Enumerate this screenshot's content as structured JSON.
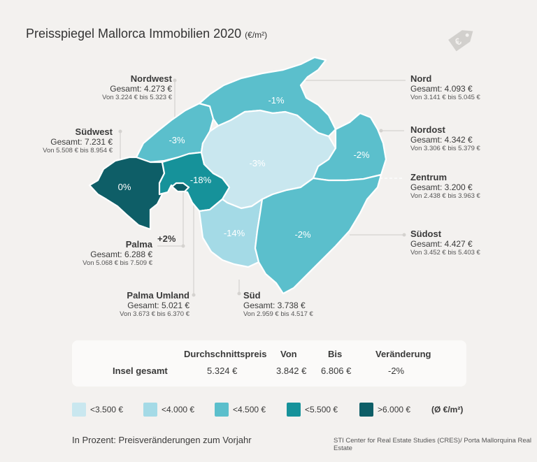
{
  "title": "Preisspiegel Mallorca Immobilien 2020",
  "title_unit": "(€/m²)",
  "icon": "price-tag-euro-icon",
  "regions": [
    {
      "key": "nordwest",
      "name": "Nordwest",
      "gesamt": "Gesamt: 4.273 €",
      "range": "Von 3.224 € bis 5.323 €",
      "change": "-3%",
      "color": "#5bbfcc"
    },
    {
      "key": "nord",
      "name": "Nord",
      "gesamt": "Gesamt: 4.093 €",
      "range": "Von 3.141 € bis 5.045 €",
      "change": "-1%",
      "color": "#5bbfcc"
    },
    {
      "key": "suedwest",
      "name": "Südwest",
      "gesamt": "Gesamt: 7.231 €",
      "range": "Von 5.508 € bis 8.954 €",
      "change": "0%",
      "color": "#0e5e67"
    },
    {
      "key": "nordost",
      "name": "Nordost",
      "gesamt": "Gesamt: 4.342 €",
      "range": "Von 3.306 € bis 5.379 €",
      "change": "-2%",
      "color": "#5bbfcc"
    },
    {
      "key": "zentrum",
      "name": "Zentrum",
      "gesamt": "Gesamt: 3.200 €",
      "range": "Von 2.438 € bis 3.963 €",
      "change": "-3%",
      "color": "#c9e7ef"
    },
    {
      "key": "palma",
      "name": "Palma",
      "gesamt": "Gesamt: 6.288 €",
      "range": "Von 5.068 € bis 7.509 €",
      "change": "+2%",
      "color": "#0e5e67"
    },
    {
      "key": "palma_umland",
      "name": "Palma Umland",
      "gesamt": "Gesamt: 5.021 €",
      "range": "Von 3.673 € bis 6.370 €",
      "change": "-18%",
      "color": "#16929a"
    },
    {
      "key": "sued",
      "name": "Süd",
      "gesamt": "Gesamt: 3.738 €",
      "range": "Von 2.959 € bis 4.517 €",
      "change": "-14%",
      "color": "#a4dae6"
    },
    {
      "key": "suedost",
      "name": "Südost",
      "gesamt": "Gesamt: 4.427 €",
      "range": "Von 3.452 € bis 5.403 €",
      "change": "-2%",
      "color": "#5bbfcc"
    }
  ],
  "summary": {
    "headers": [
      "Durchschnittspreis",
      "Von",
      "Bis",
      "Veränderung"
    ],
    "row_label": "Insel gesamt",
    "values": [
      "5.324 €",
      "3.842 €",
      "6.806 €",
      "-2%"
    ]
  },
  "legend": {
    "items": [
      {
        "label": "<3.500 €",
        "color": "#c9e7ef"
      },
      {
        "label": "<4.000 €",
        "color": "#a4dae6"
      },
      {
        "label": "<4.500 €",
        "color": "#5bbfcc"
      },
      {
        "label": "<5.500  €",
        "color": "#16929a"
      },
      {
        "label": ">6.000  €",
        "color": "#0e5e67"
      }
    ],
    "unit": "(Ø €/m²)"
  },
  "footnote": "In Prozent: Preisveränderungen zum Vorjahr",
  "source": "STI Center for Real Estate Studies (CRES)/ Porta Mallorquina Real Estate"
}
